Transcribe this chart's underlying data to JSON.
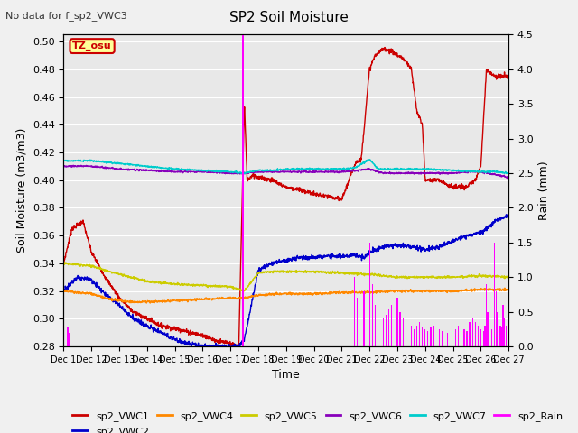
{
  "title": "SP2 Soil Moisture",
  "subtitle": "No data for f_sp2_VWC3",
  "ylabel_left": "Soil Moisture (m3/m3)",
  "ylabel_right": "Rain (mm)",
  "xlabel": "Time",
  "ylim_left": [
    0.28,
    0.505
  ],
  "ylim_right": [
    0.0,
    4.5
  ],
  "yticks_left": [
    0.28,
    0.3,
    0.32,
    0.34,
    0.36,
    0.38,
    0.4,
    0.42,
    0.44,
    0.46,
    0.48,
    0.5
  ],
  "yticks_right": [
    0.0,
    0.5,
    1.0,
    1.5,
    2.0,
    2.5,
    3.0,
    3.5,
    4.0,
    4.5
  ],
  "tz_label": "TZ_osu",
  "bg_color": "#e8e8e8",
  "grid_color": "#ffffff",
  "colors": {
    "vwc1": "#cc0000",
    "vwc2": "#0000cc",
    "vwc4": "#ff8800",
    "vwc5": "#cccc00",
    "vwc6": "#8800bb",
    "vwc7": "#00cccc",
    "rain": "#ff00ff"
  },
  "xtick_labels": [
    "Dec 1",
    "Dec 12",
    "Dec 13",
    "Dec 14",
    "Dec 15",
    "Dec 16",
    "Dec 17",
    "Dec 18",
    "Dec 19",
    "Dec 20",
    "Dec 21",
    "Dec 22",
    "Dec 23",
    "Dec 24",
    "Dec 25",
    "Dec 26",
    "Dec 27"
  ]
}
